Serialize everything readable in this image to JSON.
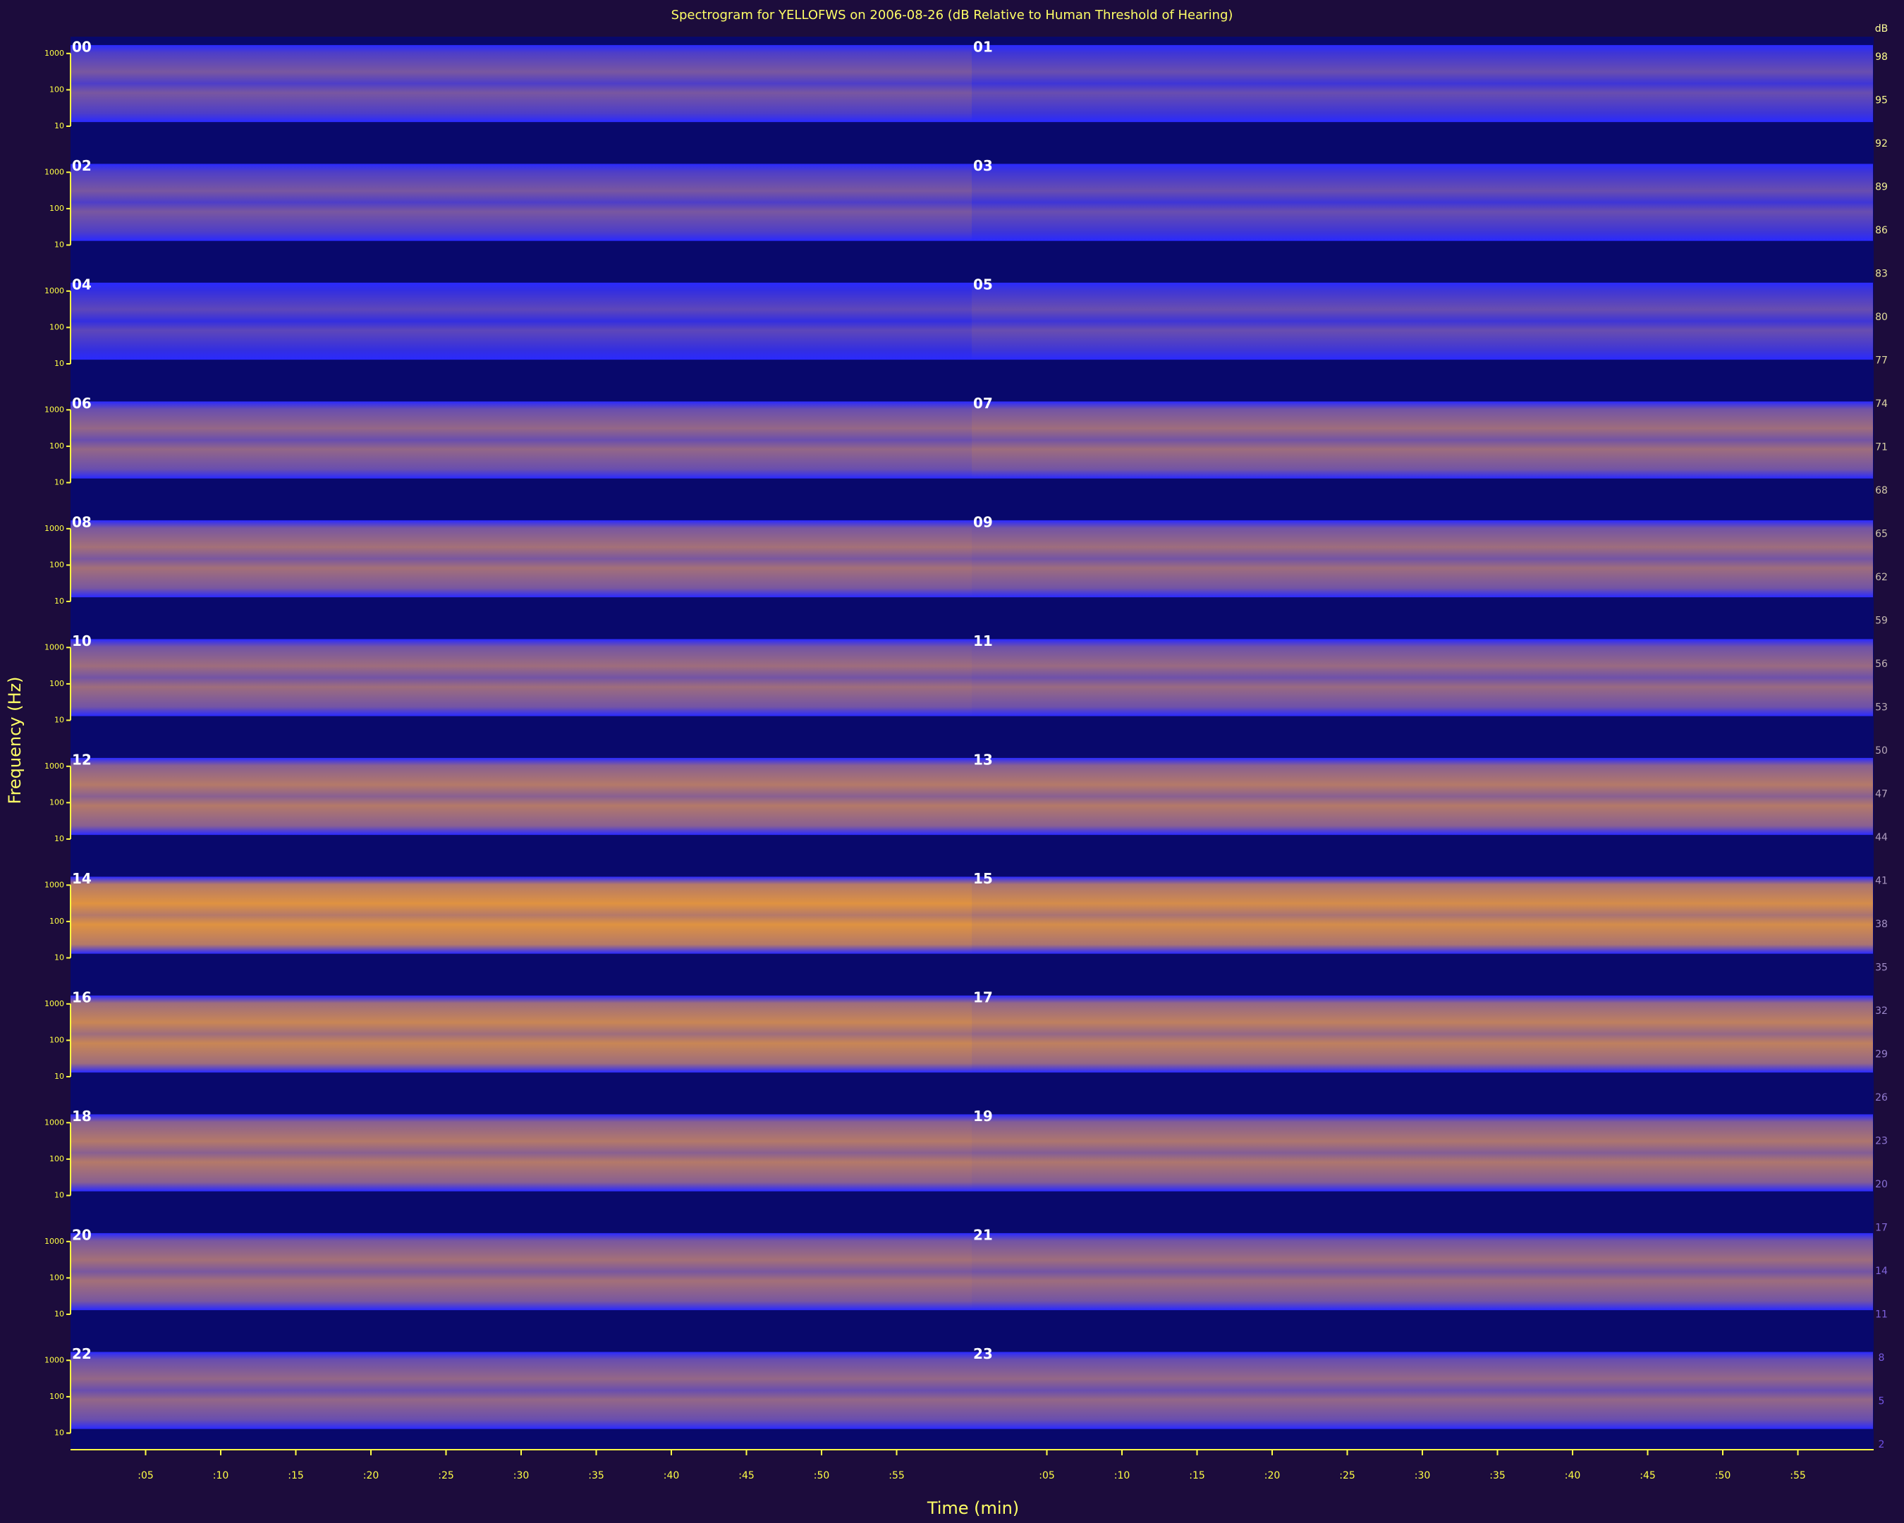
{
  "chart_data": {
    "type": "spectrogram",
    "title": "Spectrogram for YELLOFWS on 2006-08-26 (dB Relative to Human Threshold of Hearing)",
    "x_label": "Time (min)",
    "y_label": "Frequency (Hz)",
    "hours": [
      "00",
      "01",
      "02",
      "03",
      "04",
      "05",
      "06",
      "07",
      "08",
      "09",
      "10",
      "11",
      "12",
      "13",
      "14",
      "15",
      "16",
      "17",
      "18",
      "19",
      "20",
      "21",
      "22",
      "23"
    ],
    "levels": [
      55,
      52,
      55,
      52,
      50,
      52,
      60,
      62,
      63,
      62,
      62,
      61,
      66,
      66,
      74,
      72,
      70,
      68,
      66,
      65,
      63,
      62,
      60,
      60
    ],
    "xlim": [
      0,
      60
    ],
    "xticks": [
      {
        "value": 5,
        "label": ":05"
      },
      {
        "value": 10,
        "label": ":10"
      },
      {
        "value": 15,
        "label": ":15"
      },
      {
        "value": 20,
        "label": ":20"
      },
      {
        "value": 25,
        "label": ":25"
      },
      {
        "value": 30,
        "label": ":30"
      },
      {
        "value": 35,
        "label": ":35"
      },
      {
        "value": 40,
        "label": ":40"
      },
      {
        "value": 45,
        "label": ":45"
      },
      {
        "value": 50,
        "label": ":50"
      },
      {
        "value": 55,
        "label": ":55"
      }
    ],
    "ylim": [
      13,
      1700
    ],
    "yticks": [
      1000,
      100,
      10
    ],
    "log_y": true,
    "colorbar": {
      "label": "dB",
      "clim": [
        2,
        98
      ],
      "ticks": [
        98,
        95,
        92,
        89,
        86,
        83,
        80,
        77,
        74,
        71,
        68,
        65,
        62,
        59,
        56,
        53,
        50,
        47,
        44,
        41,
        38,
        35,
        32,
        29,
        26,
        23,
        20,
        17,
        14,
        11,
        8,
        5,
        2
      ]
    }
  }
}
